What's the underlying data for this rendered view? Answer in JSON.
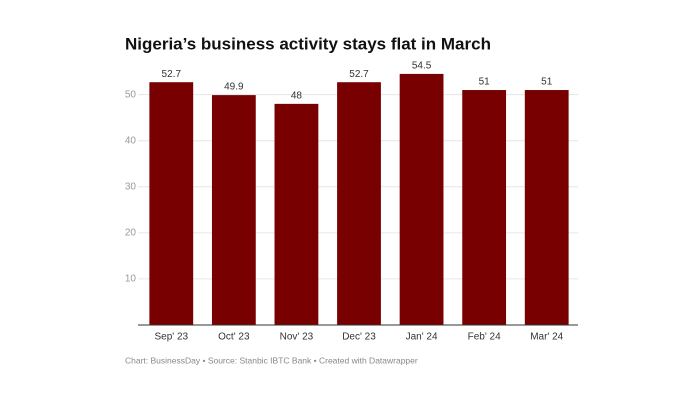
{
  "chart_data": {
    "type": "bar",
    "title": "Nigeria’s business activity stays flat in March",
    "categories": [
      "Sep' 23",
      "Oct' 23",
      "Nov' 23",
      "Dec' 23",
      "Jan' 24",
      "Feb' 24",
      "Mar' 24"
    ],
    "values": [
      52.7,
      49.9,
      48,
      52.7,
      54.5,
      51,
      51
    ],
    "color": "#790000",
    "ylim": [
      0,
      56
    ],
    "yticks": [
      10,
      20,
      30,
      40,
      50
    ],
    "grid": true,
    "footer": "Chart: BusinessDay • Source: Stanbic IBTC Bank • Created with Datawrapper"
  }
}
